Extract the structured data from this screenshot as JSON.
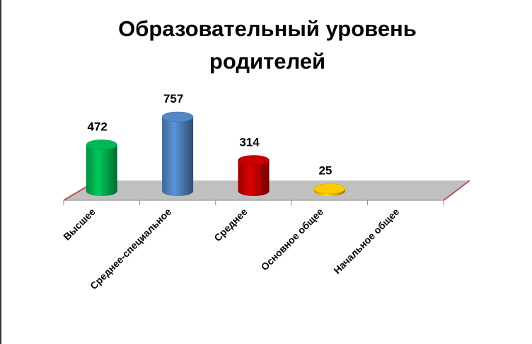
{
  "chart_data": {
    "type": "bar3d",
    "title": "Образовательный уровень родителей",
    "categories": [
      "Высшее",
      "Среднее-специальное",
      "Среднее",
      "Основное общее",
      "Начальное общее"
    ],
    "values": [
      472,
      757,
      314,
      25,
      null
    ],
    "colors": [
      "#00b050",
      "#4f81bd",
      "#c00000",
      "#ffc000",
      "#7f7f7f"
    ]
  }
}
